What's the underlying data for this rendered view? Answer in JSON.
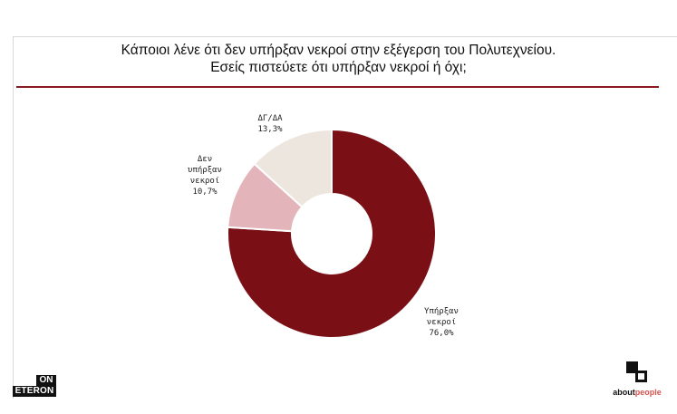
{
  "title_lines": [
    "Κάποιοι λένε ότι δεν υπήρξαν νεκροί στην εξέγερση του Πολυτεχνείου.",
    "Εσείς πιστεύετε ότι υπήρξαν νεκροί ή όχι;"
  ],
  "chart_data": {
    "type": "pie",
    "style": "donut",
    "title": "Κάποιοι λένε ότι δεν υπήρξαν νεκροί στην εξέγερση του Πολυτεχνείου. Εσείς πιστεύετε ότι υπήρξαν νεκροί ή όχι;",
    "slices": [
      {
        "label_lines": [
          "Υπήρξαν",
          "νεκροί"
        ],
        "value": 76.0,
        "value_label": "76,0%",
        "color": "#7a1016"
      },
      {
        "label_lines": [
          "Δεν",
          "υπήρξαν",
          "νεκροί"
        ],
        "value": 10.7,
        "value_label": "10,7%",
        "color": "#e3b4b9"
      },
      {
        "label_lines": [
          "ΔΓ/ΔΑ"
        ],
        "value": 13.3,
        "value_label": "13,3%",
        "color": "#ede6de"
      }
    ],
    "legend": "none"
  },
  "logos": {
    "left_top": "ON",
    "left_bottom": "ETERON",
    "right_prefix": "about",
    "right_suffix": "people"
  }
}
